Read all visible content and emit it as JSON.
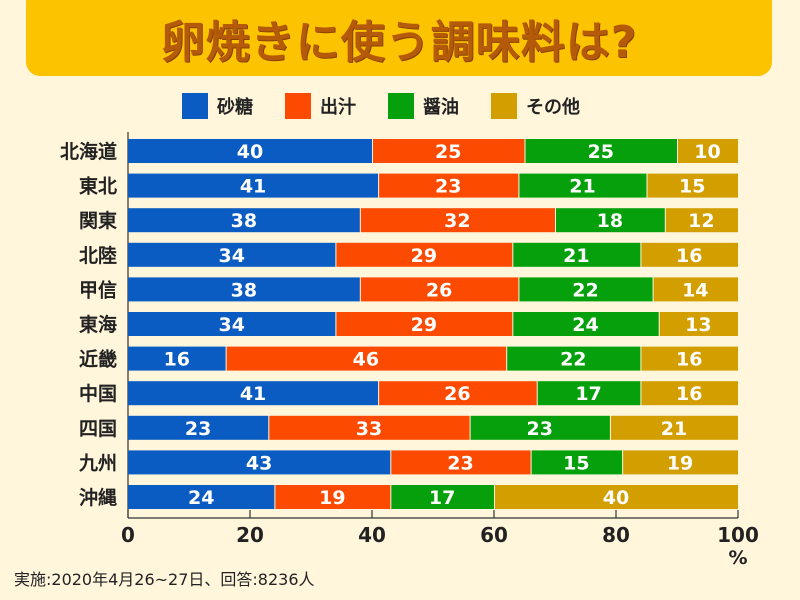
{
  "title": "卵焼きに使う調味料は?",
  "footnote": "実施:2020年4月26~27日、回答:8236人",
  "chart_data": {
    "type": "bar",
    "orientation": "horizontal",
    "stacked": true,
    "title": "卵焼きに使う調味料は?",
    "xlabel": "%",
    "ylabel": "",
    "xlim": [
      0,
      100
    ],
    "xticks": [
      0,
      20,
      40,
      60,
      80,
      100
    ],
    "grid": false,
    "legend_position": "top",
    "categories": [
      "北海道",
      "東北",
      "関東",
      "北陸",
      "甲信",
      "東海",
      "近畿",
      "中国",
      "四国",
      "九州",
      "沖縄"
    ],
    "series": [
      {
        "name": "砂糖",
        "color": "#0a5cc2",
        "values": [
          40,
          41,
          38,
          34,
          38,
          34,
          16,
          41,
          23,
          43,
          24
        ]
      },
      {
        "name": "出汁",
        "color": "#fc4a00",
        "values": [
          25,
          23,
          32,
          29,
          26,
          29,
          46,
          26,
          33,
          23,
          19
        ]
      },
      {
        "name": "醤油",
        "color": "#05a00b",
        "values": [
          25,
          21,
          18,
          21,
          22,
          24,
          22,
          17,
          23,
          15,
          17
        ]
      },
      {
        "name": "その他",
        "color": "#d39e00",
        "values": [
          10,
          15,
          12,
          16,
          14,
          13,
          16,
          16,
          21,
          19,
          40
        ]
      }
    ]
  }
}
